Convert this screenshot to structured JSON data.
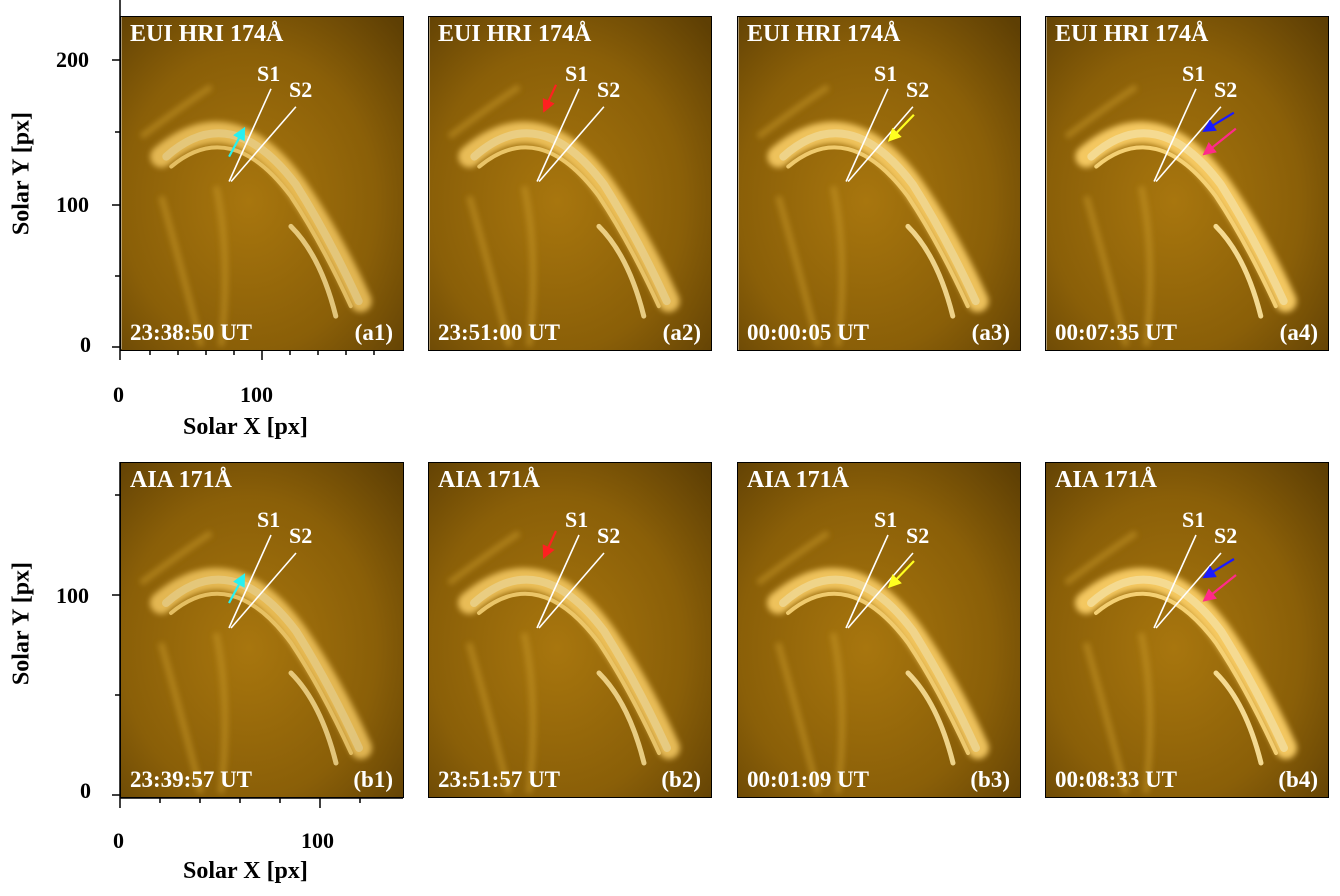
{
  "colors": {
    "background": "#6b4a05",
    "loop": "#ffd36a",
    "label": "#ffffff",
    "cyan_arrow": "#28f0f0",
    "red_arrow": "#ff2020",
    "yellow_arrow": "#ffff20",
    "blue_arrow": "#1a1aff",
    "magenta_arrow": "#ff2a8a"
  },
  "strands": {
    "s1": "S1",
    "s2": "S2"
  },
  "rows": [
    {
      "instrument": "EUI HRI 174Å",
      "ylabel": "Solar Y [px]",
      "xlabel": "Solar X [px]",
      "yticks": [
        "200",
        "100",
        "0"
      ],
      "xticks": [
        "0",
        "100"
      ],
      "panels": [
        {
          "time": "23:38:50 UT",
          "label": "(a1)",
          "arrows": [
            "cyan_arrow"
          ]
        },
        {
          "time": "23:51:00 UT",
          "label": "(a2)",
          "arrows": [
            "red_arrow"
          ]
        },
        {
          "time": "00:00:05 UT",
          "label": "(a3)",
          "arrows": [
            "yellow_arrow"
          ]
        },
        {
          "time": "00:07:35 UT",
          "label": "(a4)",
          "arrows": [
            "blue_arrow",
            "magenta_arrow"
          ]
        }
      ]
    },
    {
      "instrument": "AIA 171Å",
      "ylabel": "Solar Y [px]",
      "xlabel": "Solar X [px]",
      "yticks": [
        "100",
        "0"
      ],
      "xticks": [
        "0",
        "100"
      ],
      "panels": [
        {
          "time": "23:39:57 UT",
          "label": "(b1)",
          "arrows": [
            "cyan_arrow"
          ]
        },
        {
          "time": "23:51:57 UT",
          "label": "(b2)",
          "arrows": [
            "red_arrow"
          ]
        },
        {
          "time": "00:01:09 UT",
          "label": "(b3)",
          "arrows": [
            "yellow_arrow"
          ]
        },
        {
          "time": "00:08:33 UT",
          "label": "(b4)",
          "arrows": [
            "blue_arrow",
            "magenta_arrow"
          ]
        }
      ]
    }
  ]
}
